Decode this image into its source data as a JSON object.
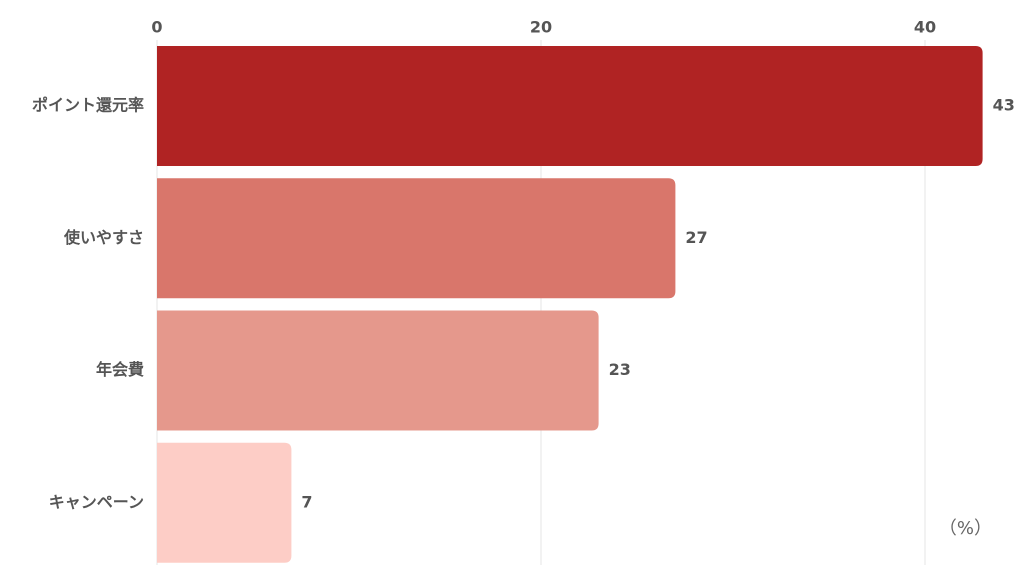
{
  "chart_data": {
    "type": "barh",
    "categories": [
      "ポイント還元率",
      "使いやすさ",
      "年会費",
      "キャンペーン"
    ],
    "values": [
      43,
      27,
      23,
      7
    ],
    "colors": [
      "#b02323",
      "#d9766b",
      "#e5988c",
      "#fdcdc6"
    ],
    "xlim": [
      0,
      45
    ],
    "xticks": [
      0,
      20,
      40
    ],
    "grid": true,
    "unit_label": "（%）"
  }
}
